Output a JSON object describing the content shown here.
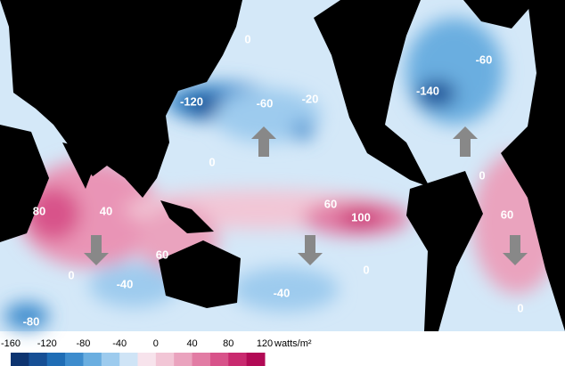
{
  "map": {
    "labels": [
      "0",
      "-120",
      "-60",
      "-20",
      "-60",
      "-140",
      "0",
      "0",
      "80",
      "40",
      "60",
      "100",
      "60",
      "60",
      "0",
      "-40",
      "-40",
      "0",
      "0",
      "-80"
    ]
  },
  "colorbar": {
    "ticks": [
      -160,
      -120,
      -80,
      -40,
      0,
      40,
      80,
      120
    ],
    "unit": "watts/m²",
    "colors": [
      "#0d3470",
      "#164f95",
      "#1f6db5",
      "#3d8ccd",
      "#6aaee0",
      "#9dcbee",
      "#cfe4f6",
      "#f7e3ec",
      "#f2c6d6",
      "#eaa3be",
      "#e27ca4",
      "#d8538a",
      "#c92a6f",
      "#b20a55"
    ]
  }
}
